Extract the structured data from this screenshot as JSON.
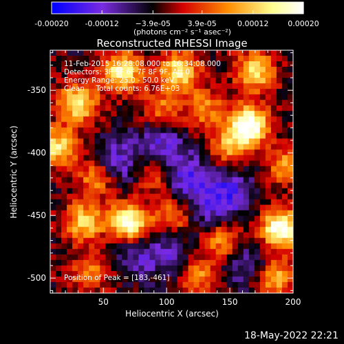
{
  "chart_data": {
    "type": "heatmap",
    "title": "Reconstructed RHESSI Image",
    "xlabel": "Heliocentric X (arcsec)",
    "ylabel": "Heliocentric Y (arcsec)",
    "xlim": [
      8,
      200
    ],
    "ylim": [
      -512,
      -318
    ],
    "x_ticks": [
      50,
      100,
      150,
      200
    ],
    "y_ticks": [
      -500,
      -450,
      -400,
      -350
    ],
    "colorbar": {
      "range": [
        -0.0002,
        0.0002
      ],
      "tick_values": [
        -0.0002,
        -0.00012,
        -3.9e-05,
        3.9e-05,
        0.00012,
        0.0002
      ],
      "tick_labels": [
        "-0.00020",
        "-0.00012",
        "−3.9e-05",
        "3.9e-05",
        "0.00012",
        "0.00020"
      ],
      "unit_label": "(photons cm⁻² s⁻¹ asec⁻²)",
      "colors": [
        "#0000ff",
        "#7a2be0",
        "#000000",
        "#d40000",
        "#ff8c00",
        "#ffff90",
        "#ffffff"
      ]
    },
    "annotations": [
      "11-Feb-2015 16:28:08.000 to 16:34:08.000",
      "Detectors: 3F 5F 6F 7F 8F 9F, Att 0",
      "Energy Range: 25.0 - 50.0 keV",
      "Clean     Total counts: 6.76E+03"
    ],
    "peak_label": "Position of Peak = [183,-461]",
    "bright_sources": [
      {
        "x": 165,
        "y": -378,
        "intensity": 1.0
      },
      {
        "x": 190,
        "y": -461,
        "intensity": 1.0
      },
      {
        "x": 70,
        "y": -456,
        "intensity": 0.95
      },
      {
        "x": 15,
        "y": -395,
        "intensity": 0.7
      },
      {
        "x": 30,
        "y": -360,
        "intensity": 0.75
      },
      {
        "x": 65,
        "y": -335,
        "intensity": 0.8
      },
      {
        "x": 110,
        "y": -335,
        "intensity": 0.75
      },
      {
        "x": 170,
        "y": -335,
        "intensity": 0.7
      },
      {
        "x": 45,
        "y": -420,
        "intensity": 0.55
      },
      {
        "x": 90,
        "y": -415,
        "intensity": 0.5
      },
      {
        "x": 195,
        "y": -410,
        "intensity": 0.5
      },
      {
        "x": 130,
        "y": -365,
        "intensity": 0.45
      },
      {
        "x": 105,
        "y": -450,
        "intensity": 0.5
      },
      {
        "x": 145,
        "y": -470,
        "intensity": 0.55
      },
      {
        "x": 35,
        "y": -455,
        "intensity": 0.65
      },
      {
        "x": 40,
        "y": -495,
        "intensity": 0.45
      },
      {
        "x": 125,
        "y": -498,
        "intensity": 0.45
      },
      {
        "x": 185,
        "y": -500,
        "intensity": 0.6
      },
      {
        "x": 150,
        "y": -395,
        "intensity": 0.5
      },
      {
        "x": 95,
        "y": -365,
        "intensity": 0.4
      }
    ],
    "dim_regions": [
      {
        "x": 60,
        "y": -410,
        "intensity": 0.9
      },
      {
        "x": 95,
        "y": -395,
        "intensity": 0.9
      },
      {
        "x": 115,
        "y": -420,
        "intensity": 0.85
      },
      {
        "x": 150,
        "y": -430,
        "intensity": 0.8
      },
      {
        "x": 100,
        "y": -480,
        "intensity": 0.7
      },
      {
        "x": 165,
        "y": -488,
        "intensity": 0.75
      },
      {
        "x": 70,
        "y": -480,
        "intensity": 0.6
      },
      {
        "x": 135,
        "y": -445,
        "intensity": 0.65
      }
    ]
  },
  "footer": {
    "date": "18-May-2022 22:21"
  }
}
